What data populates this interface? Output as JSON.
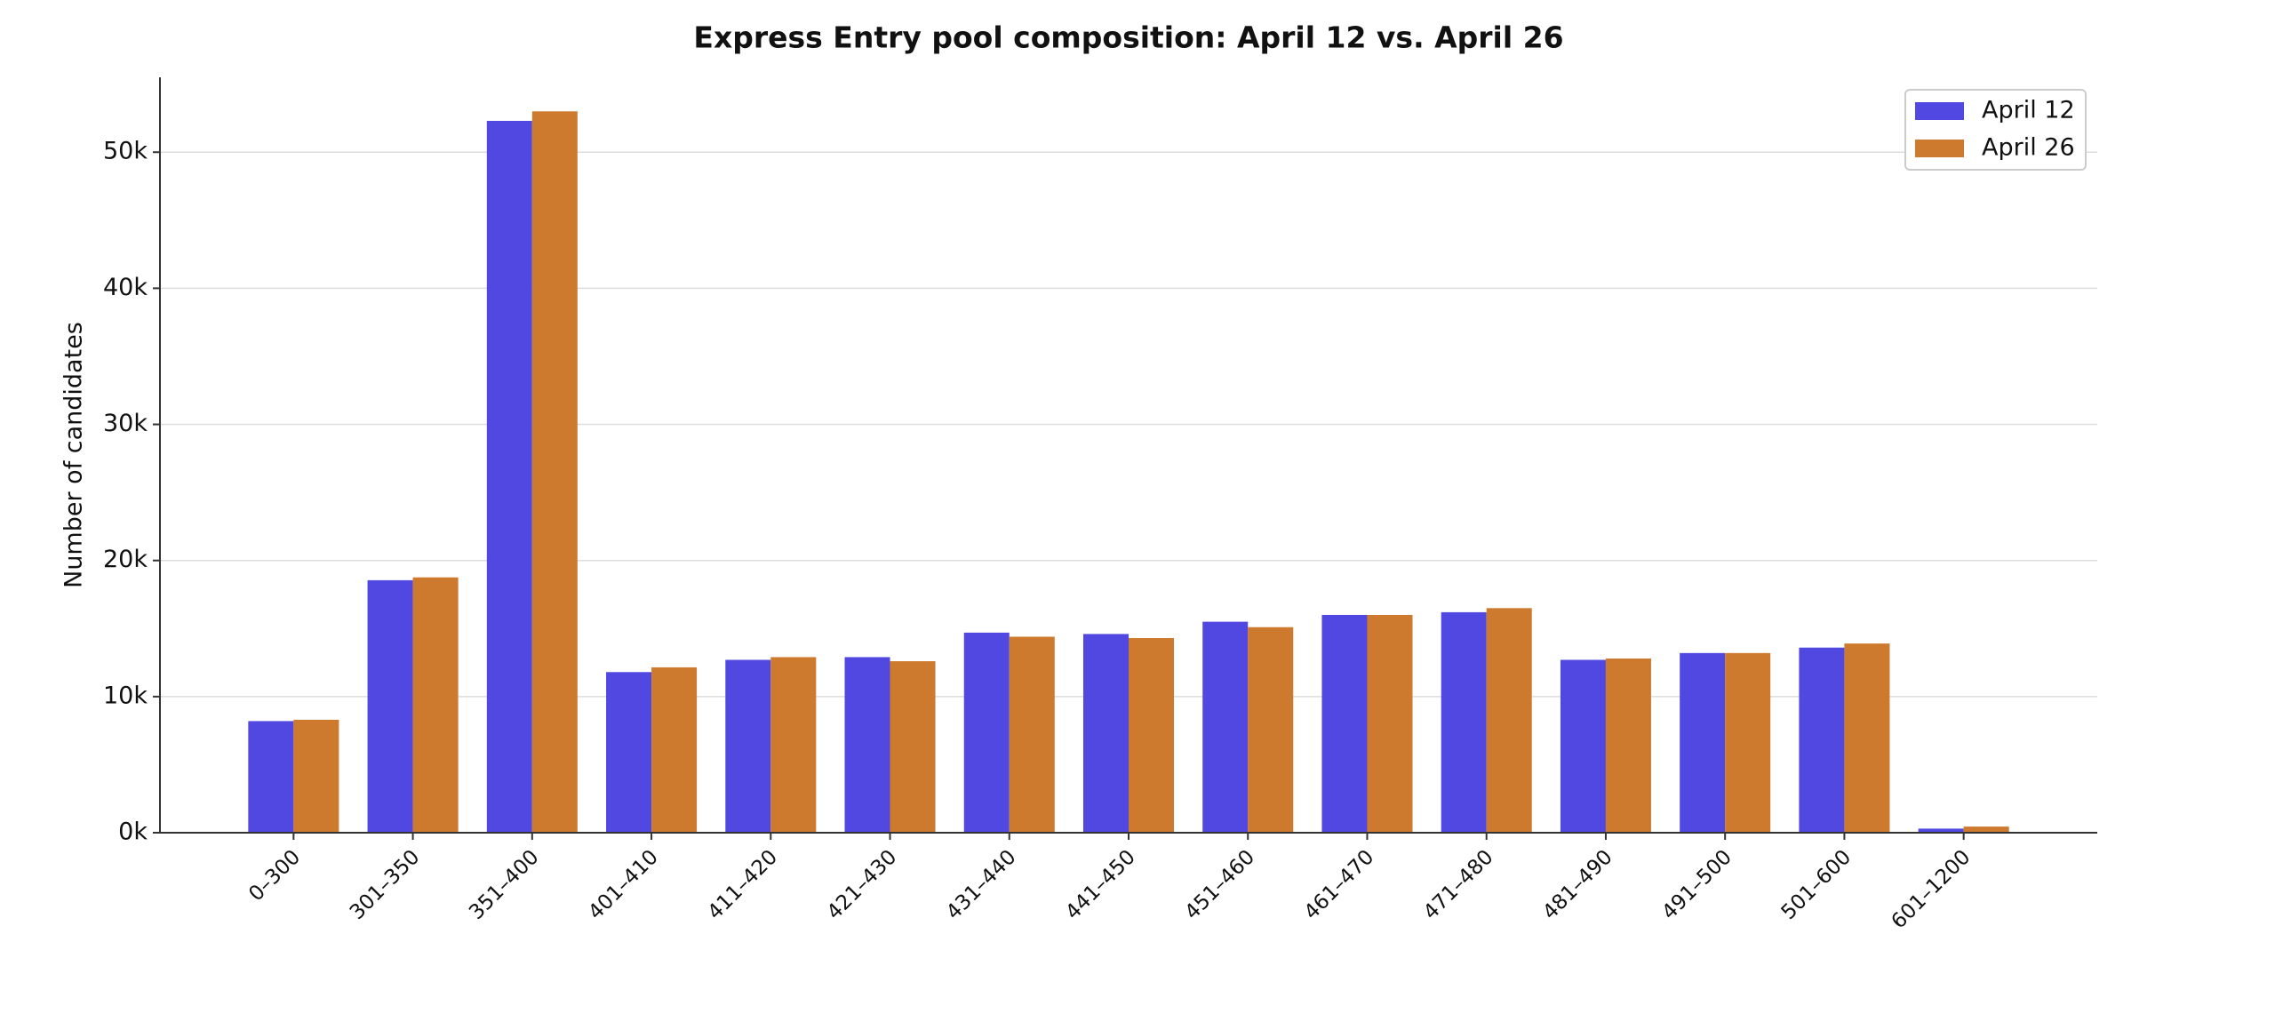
{
  "chart_data": {
    "type": "bar",
    "title": "Express Entry pool composition: April 12 vs. April 26",
    "y_label": "Number of candidates",
    "categories": [
      "0–300",
      "301–350",
      "351–400",
      "401–410",
      "411–420",
      "421–430",
      "431–440",
      "441–450",
      "451–460",
      "461–470",
      "471–480",
      "481–490",
      "491–500",
      "501–600",
      "601–1200"
    ],
    "series": [
      {
        "name": "April 12",
        "color": "#5048e0",
        "values": [
          8200,
          18550,
          52300,
          11800,
          12700,
          12900,
          14700,
          14600,
          15500,
          16000,
          16200,
          12700,
          13200,
          13600,
          300
        ]
      },
      {
        "name": "April 26",
        "color": "#cd7a2e",
        "values": [
          8300,
          18760,
          53000,
          12150,
          12900,
          12600,
          14400,
          14300,
          15100,
          16000,
          16500,
          12800,
          13200,
          13900,
          450
        ]
      }
    ],
    "ylim": [
      0,
      55500
    ],
    "yticks": [
      {
        "value": 0,
        "label": "0k"
      },
      {
        "value": 10000,
        "label": "10k"
      },
      {
        "value": 20000,
        "label": "20k"
      },
      {
        "value": 30000,
        "label": "30k"
      },
      {
        "value": 40000,
        "label": "40k"
      },
      {
        "value": 50000,
        "label": "50k"
      }
    ],
    "grid": true,
    "legend": "upper right"
  }
}
